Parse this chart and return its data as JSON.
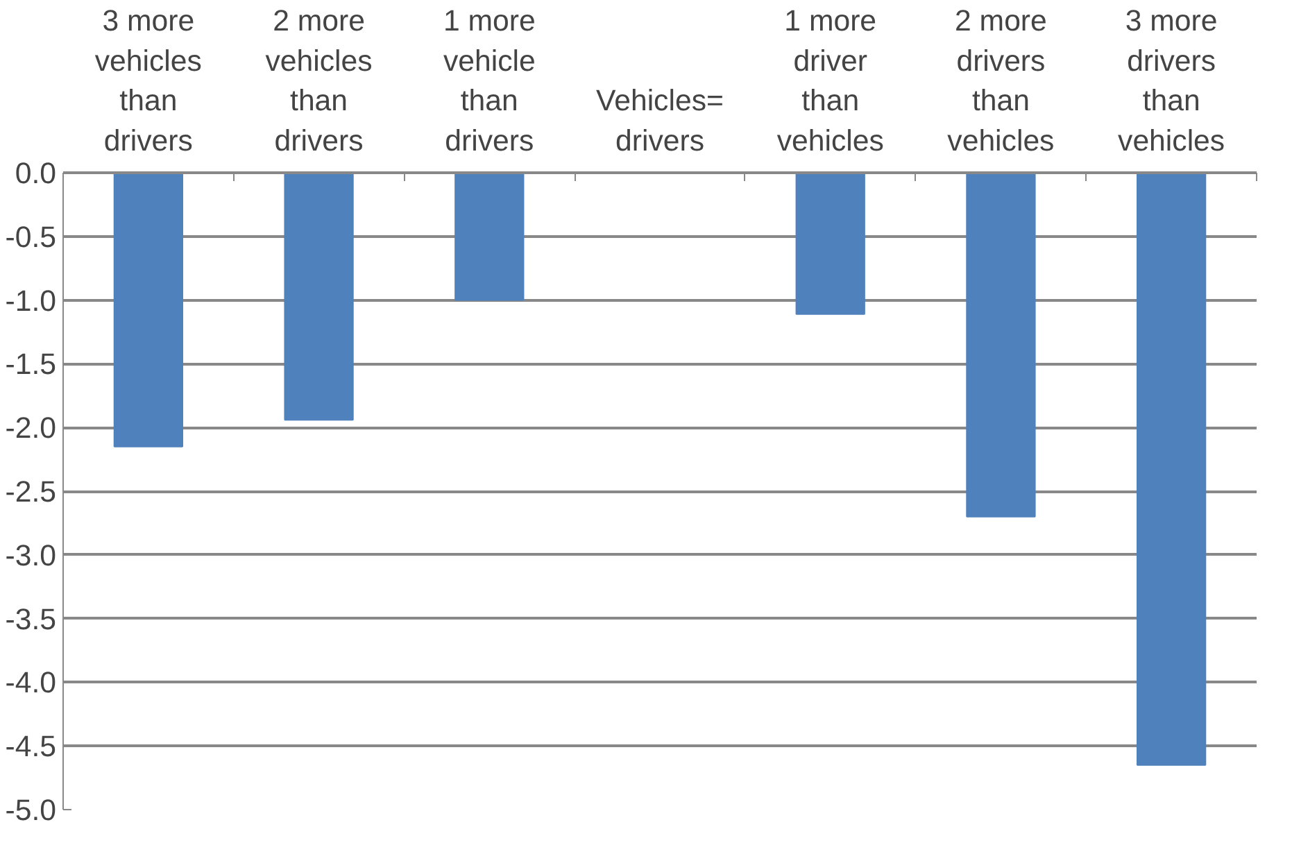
{
  "chart_data": {
    "type": "bar",
    "categories": [
      "3 more vehicles than drivers",
      "2 more vehicles than drivers",
      "1 more vehicle than drivers",
      "Vehicles= drivers",
      "1 more driver than vehicles",
      "2 more drivers than vehicles",
      "3 more drivers than vehicles"
    ],
    "values": [
      -2.15,
      -1.94,
      -1.0,
      0,
      -1.11,
      -2.7,
      -4.65
    ],
    "color": "#4f81bd",
    "ylim": [
      -5.0,
      0.0
    ],
    "yticks": [
      {
        "value": 0,
        "label": "0.0"
      },
      {
        "value": -0.5,
        "label": "-0.5"
      },
      {
        "value": -1,
        "label": "-1.0"
      },
      {
        "value": -1.5,
        "label": "-1.5"
      },
      {
        "value": -2,
        "label": "-2.0"
      },
      {
        "value": -2.5,
        "label": "-2.5"
      },
      {
        "value": -3,
        "label": "-3.0"
      },
      {
        "value": -3.5,
        "label": "-3.5"
      },
      {
        "value": -4,
        "label": "-4.0"
      },
      {
        "value": -4.5,
        "label": "-4.5"
      },
      {
        "value": -5,
        "label": "-5.0"
      }
    ],
    "grid": "y"
  }
}
